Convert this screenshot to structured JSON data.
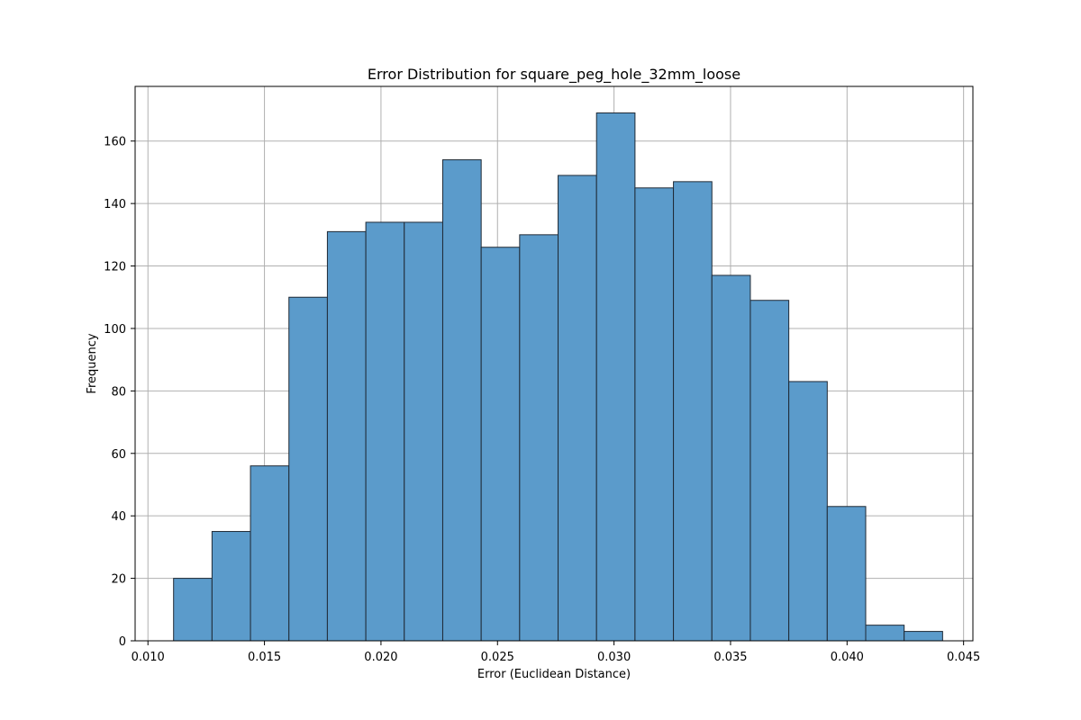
{
  "chart_data": {
    "type": "bar",
    "title": "Error Distribution for square_peg_hole_32mm_loose",
    "xlabel": "Error (Euclidean Distance)",
    "ylabel": "Frequency",
    "bin_edges": [
      0.0111,
      0.01275,
      0.0144,
      0.01605,
      0.0177,
      0.01935,
      0.021,
      0.02265,
      0.0243,
      0.02595,
      0.0276,
      0.02925,
      0.0309,
      0.03255,
      0.0342,
      0.03585,
      0.0375,
      0.03915,
      0.0408,
      0.04245,
      0.0441
    ],
    "values": [
      20,
      35,
      56,
      110,
      131,
      134,
      134,
      154,
      126,
      130,
      149,
      169,
      145,
      147,
      117,
      109,
      83,
      43,
      5,
      3
    ],
    "x_ticks": [
      0.01,
      0.015,
      0.02,
      0.025,
      0.03,
      0.035,
      0.04,
      0.045
    ],
    "x_tick_labels": [
      "0.010",
      "0.015",
      "0.020",
      "0.025",
      "0.030",
      "0.035",
      "0.040",
      "0.045"
    ],
    "y_ticks": [
      0,
      20,
      40,
      60,
      80,
      100,
      120,
      140,
      160
    ],
    "y_tick_labels": [
      "0",
      "20",
      "40",
      "60",
      "80",
      "100",
      "120",
      "140",
      "160"
    ],
    "xlim": [
      0.00945,
      0.0454
    ],
    "ylim": [
      0,
      177.5
    ],
    "grid": true,
    "legend": "none",
    "colors": {
      "bar_fill": "#5b9bcb",
      "bar_edge": "#1f2a36",
      "grid": "#b0b0b0",
      "axes": "#000000",
      "background": "#ffffff"
    }
  }
}
